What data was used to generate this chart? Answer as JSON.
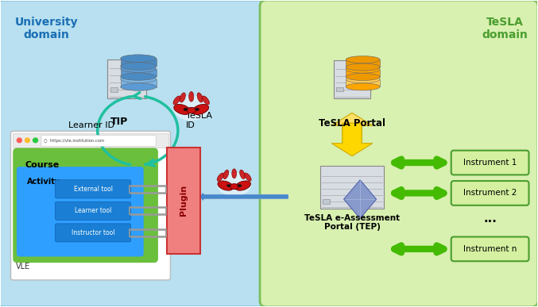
{
  "fig_width": 6.77,
  "fig_height": 3.87,
  "dpi": 100,
  "bg_color": "#ffffff",
  "uni_domain_bg": "#b8e0f0",
  "tesla_domain_bg": "#d8f0b0",
  "uni_label": "University\ndomain",
  "uni_label_color": "#1a6fb5",
  "tesla_label": "TeSLA\ndomain",
  "tesla_label_color": "#4a9e2f",
  "tip_label": "TIP",
  "learner_id_label": "Learner ID",
  "tesla_id_label": "TeSLA\nID",
  "vle_label": "VLE",
  "plugin_label": "Plugin",
  "tesla_portal_label": "TeSLA Portal",
  "tep_label": "TeSLA e-Assessment\nPortal (TEP)",
  "instrument_labels": [
    "Instrument 1",
    "Instrument 2",
    "...",
    "Instrument n"
  ],
  "course_label": "Course",
  "activity_label": "Activity",
  "tool_labels": [
    "External tool",
    "Learner tool",
    "Instructor tool"
  ],
  "vle_bg": "#ffffff",
  "vle_border": "#cccccc",
  "course_bg": "#6abf3c",
  "activity_bg": "#2e9fff",
  "tool_bg": "#1a7fd4",
  "tool_text_color": "#ffffff",
  "plugin_bg": "#f08080",
  "plugin_text_color": "#8B0000",
  "instrument_bg": "#d4f0a0",
  "instrument_border": "#4a9e2f",
  "arrow_cyan": "#20c0a0",
  "arrow_yellow": "#ffd700",
  "arrow_green": "#44bb00",
  "server_gray": "#d0d4da",
  "server_edge": "#999999",
  "db_blue_top": "#7ab5e5",
  "db_blue_mid": "#5b9bd5",
  "db_blue_bot": "#4a8bc4",
  "db_orange_top": "#ffcc55",
  "db_orange_mid": "#ffa500",
  "db_orange_bot": "#ee9900"
}
